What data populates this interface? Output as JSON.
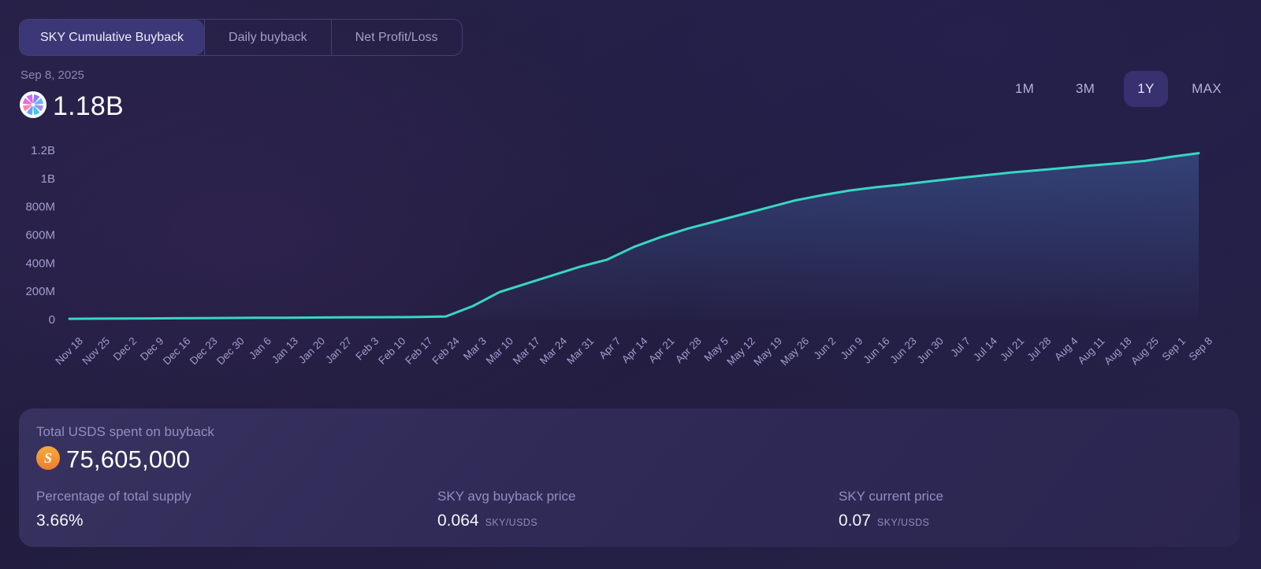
{
  "tabs": {
    "items": [
      {
        "label": "SKY Cumulative Buyback",
        "active": true
      },
      {
        "label": "Daily buyback",
        "active": false
      },
      {
        "label": "Net Profit/Loss",
        "active": false
      }
    ]
  },
  "header": {
    "date": "Sep 8, 2025",
    "total_value": "1.18B",
    "token_icon": "sky-token-icon"
  },
  "ranges": {
    "items": [
      {
        "label": "1M",
        "active": false
      },
      {
        "label": "3M",
        "active": false
      },
      {
        "label": "1Y",
        "active": true
      },
      {
        "label": "MAX",
        "active": false
      }
    ]
  },
  "chart_data": {
    "type": "line",
    "title": "SKY Cumulative Buyback",
    "unit": "SKY",
    "latest_label": "Sep 8, 2025",
    "latest_value": "1.18B",
    "x_labels": [
      "Nov 18",
      "Nov 25",
      "Dec 2",
      "Dec 9",
      "Dec 16",
      "Dec 23",
      "Dec 30",
      "Jan 6",
      "Jan 13",
      "Jan 20",
      "Jan 27",
      "Feb 3",
      "Feb 10",
      "Feb 17",
      "Feb 24",
      "Mar 3",
      "Mar 10",
      "Mar 17",
      "Mar 24",
      "Mar 31",
      "Apr 7",
      "Apr 14",
      "Apr 21",
      "Apr 28",
      "May 5",
      "May 12",
      "May 19",
      "May 26",
      "Jun 2",
      "Jun 9",
      "Jun 16",
      "Jun 23",
      "Jun 30",
      "Jul 7",
      "Jul 14",
      "Jul 21",
      "Jul 28",
      "Aug 4",
      "Aug 11",
      "Aug 18",
      "Aug 25",
      "Sep 1",
      "Sep 8"
    ],
    "values_millions": [
      5,
      6,
      7,
      8,
      9,
      10,
      11,
      12,
      13,
      14,
      15,
      16,
      17,
      18,
      22,
      95,
      195,
      255,
      315,
      375,
      425,
      515,
      585,
      645,
      695,
      745,
      795,
      845,
      882,
      915,
      938,
      958,
      980,
      1002,
      1022,
      1042,
      1058,
      1075,
      1092,
      1108,
      1125,
      1155,
      1180
    ],
    "y_ticks": [
      {
        "value": 1200,
        "label": "1.2B"
      },
      {
        "value": 1000,
        "label": "1B"
      },
      {
        "value": 800,
        "label": "800M"
      },
      {
        "value": 600,
        "label": "600M"
      },
      {
        "value": 400,
        "label": "400M"
      },
      {
        "value": 200,
        "label": "200M"
      },
      {
        "value": 0,
        "label": "0"
      }
    ],
    "ylim": [
      0,
      1290
    ],
    "grid": false,
    "legend": false,
    "line_color": "#38d6c3",
    "area_fill_top": "rgba(96,165,250,0.26)",
    "area_fill_bottom": "rgba(96,165,250,0.02)",
    "axis_label_color": "#a19dce"
  },
  "summary_card": {
    "title": "Total USDS spent on buyback",
    "usds_icon": "usds-token-icon",
    "total_value": "75,605,000",
    "stats": [
      {
        "label": "Percentage of total supply",
        "value": "3.66%",
        "unit": ""
      },
      {
        "label": "SKY avg buyback price",
        "value": "0.064",
        "unit": "SKY/USDS"
      },
      {
        "label": "SKY current price",
        "value": "0.07",
        "unit": "SKY/USDS"
      }
    ]
  },
  "colors": {
    "accent_teal": "#38d6c3",
    "active_tab_bg": "#3c3776",
    "active_range_bg": "#373170",
    "usds_orange": "#f59e42",
    "card_bg": "#2f2a56",
    "muted_label": "#928ec2"
  }
}
